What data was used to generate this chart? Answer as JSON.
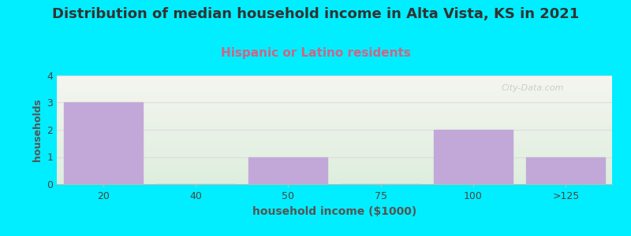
{
  "title": "Distribution of median household income in Alta Vista, KS in 2021",
  "subtitle": "Hispanic or Latino residents",
  "xlabel": "household income ($1000)",
  "ylabel": "households",
  "categories": [
    "20",
    "40",
    "50",
    "75",
    "100",
    ">125"
  ],
  "values": [
    3,
    0,
    1,
    0,
    2,
    1
  ],
  "bar_color": "#c2a8d8",
  "background_color": "#00EEFF",
  "plot_bg_top": "#f5f5ee",
  "plot_bg_bottom": "#ddeedd",
  "title_fontsize": 13,
  "subtitle_fontsize": 11,
  "subtitle_color": "#cc6688",
  "xlabel_fontsize": 10,
  "ylabel_fontsize": 9,
  "ylim": [
    0,
    4
  ],
  "yticks": [
    0,
    1,
    2,
    3,
    4
  ],
  "grid_color": "#dddddd",
  "watermark": "City-Data.com"
}
